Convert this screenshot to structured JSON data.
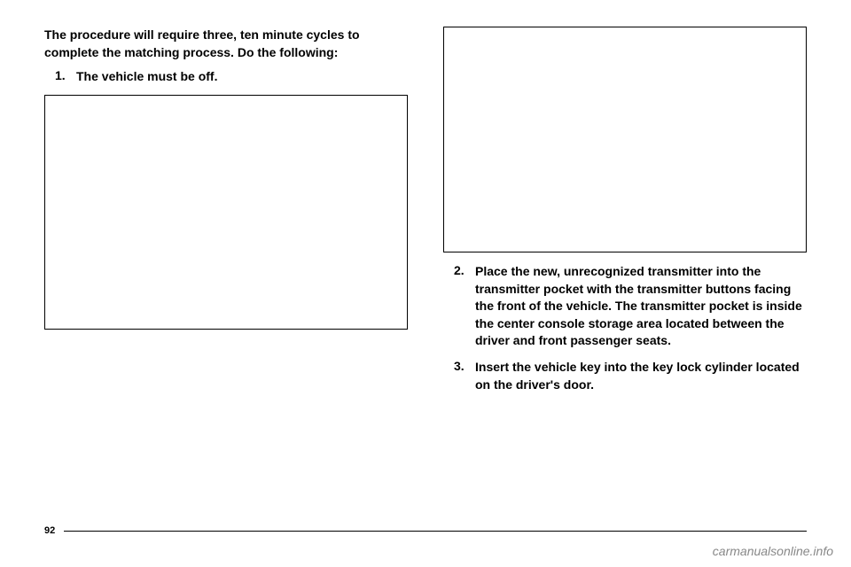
{
  "intro": "The procedure will require three, ten minute cycles to complete the matching process. Do the following:",
  "steps": {
    "s1": {
      "num": "1.",
      "text": "The vehicle must be off."
    },
    "s2": {
      "num": "2.",
      "text": "Place the new, unrecognized transmitter into the transmitter pocket with the transmitter buttons facing the front of the vehicle. The transmitter pocket is inside the center console storage area located between the driver and front passenger seats."
    },
    "s3": {
      "num": "3.",
      "text": "Insert the vehicle key into the key lock cylinder located on the driver's door."
    }
  },
  "pageNumber": "92",
  "watermark": "carmanualsonline.info",
  "colors": {
    "background": "#ffffff",
    "text": "#000000",
    "watermark": "#888888",
    "border": "#000000"
  }
}
